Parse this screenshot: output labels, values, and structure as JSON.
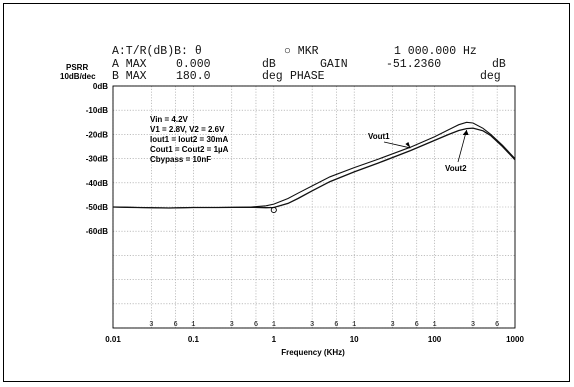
{
  "header": {
    "line1": {
      "left": "A:T/R(dB)B: θ",
      "mid": "○ MKR",
      "right": "1 000.000 Hz"
    },
    "line2": {
      "prefix": "A MAX",
      "val": "0.000",
      "unit": "dB",
      "label": "GAIN",
      "reading": "-51.2360",
      "runit": "dB"
    },
    "line3": {
      "prefix": "B MAX",
      "val": "180.0",
      "unit": "deg",
      "label": "PHASE",
      "runit": "deg"
    }
  },
  "chart_data": {
    "type": "line",
    "ylabel": "PSRR",
    "ylabel_scale": "10dB/dec",
    "xlabel": "Frequency (KHz)",
    "xscale": "log",
    "xlim": [
      0.01,
      1000
    ],
    "ylim": [
      -100,
      0
    ],
    "x_ticks": [
      0.01,
      0.1,
      1,
      10,
      100,
      1000
    ],
    "x_tick_labels": [
      "0.01",
      "0.1",
      "1",
      "10",
      "100",
      "1000"
    ],
    "y_ticks": [
      0,
      -10,
      -20,
      -30,
      -40,
      -50,
      -60
    ],
    "y_tick_labels": [
      "0dB",
      "-10dB",
      "-20dB",
      "-30dB",
      "-40dB",
      "-50dB",
      "-60dB"
    ],
    "grid": true,
    "minor_tick_labels": [
      "3",
      "6",
      "1",
      "3",
      "6",
      "1",
      "3",
      "6",
      "1",
      "3",
      "6",
      "1",
      "3",
      "6",
      "1",
      "3",
      "6"
    ],
    "conditions": [
      "Vin = 4.2V",
      "V1 = 2.8V, V2 = 2.6V",
      "Iout1 = Iout2 = 30mA",
      "Cout1 = Cout2 = 1µA",
      "Cbypass = 10nF"
    ],
    "series": [
      {
        "name": "Vout1",
        "x": [
          0.01,
          0.02,
          0.05,
          0.1,
          0.2,
          0.5,
          0.8,
          1,
          1.5,
          2,
          3,
          5,
          10,
          20,
          50,
          100,
          150,
          200,
          250,
          300,
          400,
          500,
          700,
          1000
        ],
        "y": [
          -50,
          -50.2,
          -50.4,
          -50.2,
          -50.2,
          -50.1,
          -49.5,
          -48.8,
          -46.5,
          -44.3,
          -41.3,
          -37.5,
          -33.7,
          -30.2,
          -25.3,
          -21,
          -18,
          -16,
          -15,
          -15.3,
          -17.5,
          -20,
          -24.5,
          -30
        ]
      },
      {
        "name": "Vout2",
        "x": [
          0.01,
          0.02,
          0.05,
          0.1,
          0.2,
          0.5,
          0.8,
          1,
          1.5,
          2,
          3,
          5,
          10,
          20,
          50,
          100,
          150,
          200,
          250,
          300,
          400,
          500,
          700,
          1000
        ],
        "y": [
          -50,
          -50.2,
          -50.4,
          -50.2,
          -50.2,
          -50.1,
          -50.3,
          -50.2,
          -48.5,
          -46.5,
          -43.3,
          -39.5,
          -35.5,
          -31.8,
          -26.7,
          -22.5,
          -20,
          -18.4,
          -17.6,
          -17.4,
          -18.5,
          -20.5,
          -25,
          -30.5
        ]
      }
    ],
    "marker": {
      "x": 1,
      "y": -51.236
    }
  }
}
